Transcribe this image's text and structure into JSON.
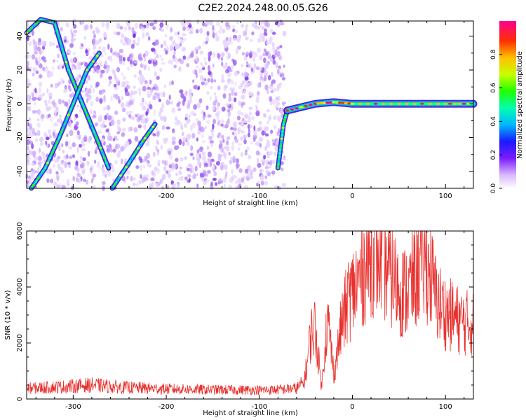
{
  "title": "C2E2.2024.248.00.05.G26",
  "chart_data": [
    {
      "type": "heatmap",
      "xlabel": "Height of straight line (km)",
      "ylabel": "Frequency (Hz)",
      "xlim": [
        -350,
        130
      ],
      "ylim": [
        -50,
        49
      ],
      "xticks": [
        -300,
        -200,
        -100,
        0,
        100
      ],
      "yticks": [
        -40,
        -20,
        0,
        20,
        40
      ],
      "colorbar": {
        "label": "Normalized spectral amplitude",
        "range": [
          0,
          1
        ],
        "ticks": [
          "0.0",
          "0.2",
          "0.4",
          "0.6",
          "0.8"
        ]
      },
      "features": [
        {
          "name": "diagonal track 1",
          "x": [
            -350,
            -335,
            -320,
            -305,
            -290,
            -275,
            -262
          ],
          "y": [
            42,
            50,
            48,
            20,
            0,
            -20,
            -38
          ]
        },
        {
          "name": "diagonal track 2",
          "x": [
            -345,
            -330,
            -315,
            -300,
            -285,
            -272
          ],
          "y": [
            -50,
            -38,
            -20,
            0,
            20,
            30
          ]
        },
        {
          "name": "diagonal track 3",
          "x": [
            -258,
            -240,
            -225,
            -212
          ],
          "y": [
            -50,
            -35,
            -22,
            -12
          ]
        },
        {
          "name": "descending track",
          "x": [
            -80,
            -77,
            -74,
            -70
          ],
          "y": [
            -38,
            -25,
            -12,
            -4
          ]
        },
        {
          "name": "carrier line",
          "x": [
            -70,
            -40,
            -20,
            0,
            50,
            100,
            130
          ],
          "y": [
            -4,
            0,
            1,
            0,
            0,
            0,
            0
          ]
        }
      ],
      "noise_region_x": [
        -350,
        -73
      ]
    },
    {
      "type": "line",
      "xlabel": "Height of straight line (km)",
      "ylabel": "SNR (10 * v/v)",
      "xlim": [
        -350,
        130
      ],
      "ylim": [
        0,
        6000
      ],
      "xticks": [
        -300,
        -200,
        -100,
        0,
        100
      ],
      "yticks": [
        0,
        2000,
        4000,
        6000
      ],
      "color": "#e8312e",
      "series": [
        {
          "x": [
            -350,
            -320,
            -300,
            -280,
            -250,
            -200,
            -150,
            -100,
            -80,
            -60,
            -52,
            -48,
            -45,
            -40,
            -36,
            -33,
            -30,
            -27,
            -24,
            -20,
            -16,
            -12,
            -8,
            -4,
            0,
            5,
            10,
            15,
            20,
            25,
            30,
            35,
            40,
            45,
            50,
            55,
            60,
            65,
            70,
            75,
            80,
            85,
            90,
            95,
            100,
            105,
            110,
            115,
            120,
            125,
            130
          ],
          "values": [
            380,
            420,
            460,
            500,
            420,
            360,
            330,
            320,
            330,
            380,
            600,
            1400,
            2300,
            2600,
            1300,
            400,
            1800,
            2800,
            2200,
            900,
            1700,
            2600,
            3100,
            3600,
            3800,
            4100,
            4500,
            4800,
            5200,
            5300,
            5200,
            4900,
            4500,
            4200,
            4000,
            3800,
            3900,
            4200,
            4600,
            4900,
            4800,
            4300,
            3600,
            3300,
            3100,
            3000,
            2900,
            2800,
            2750,
            2700,
            2700
          ]
        }
      ]
    }
  ]
}
